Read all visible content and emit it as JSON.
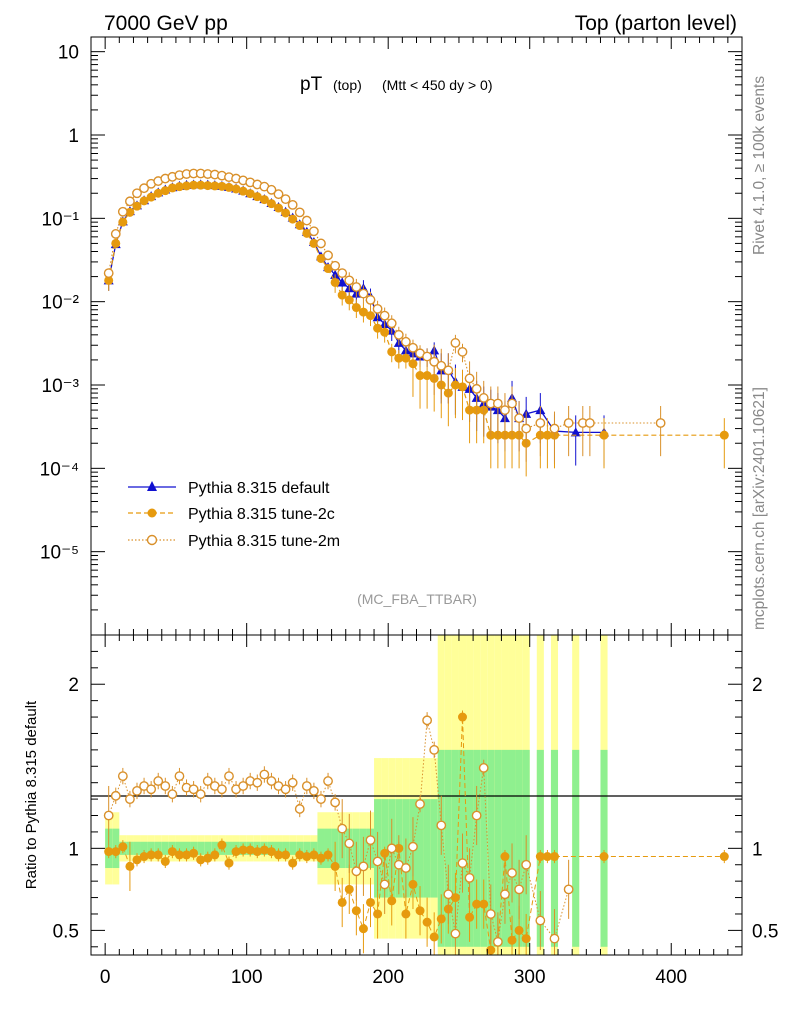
{
  "header": {
    "left": "7000 GeV pp",
    "right": "Top (parton level)"
  },
  "side_labels": {
    "top": "Rivet 4.1.0, ≥ 100k events",
    "bottom": "mcplots.cern.ch [arXiv:2401.10621]"
  },
  "colors": {
    "default": "#1010d0",
    "tune2c": "#e69a0e",
    "tune2m": "#d9902a",
    "band_green": "#8ff08f",
    "band_yellow": "#ffff99"
  },
  "chart_data": {
    "type": "line",
    "title": "pT",
    "title_sub1": "(top)",
    "title_sub2": "(Mtt < 450 dy > 0)",
    "watermark": "(MC_FBA_TTBAR)",
    "xlim": [
      -10,
      450
    ],
    "ylim": [
      1e-06,
      15
    ],
    "x_ticks": [
      "0",
      "100",
      "200",
      "300",
      "400"
    ],
    "y_ticks": [
      "10",
      "1",
      "10⁻¹",
      "10⁻²",
      "10⁻³",
      "10⁻⁴",
      "10⁻⁵"
    ],
    "legend": [
      "Pythia 8.315 default",
      "Pythia 8.315 tune-2c",
      "Pythia 8.315 tune-2m"
    ],
    "series": [
      {
        "name": "Pythia 8.315 default",
        "x": [
          2.5,
          7.5,
          12.5,
          17.5,
          22.5,
          27.5,
          32.5,
          37.5,
          42.5,
          47.5,
          52.5,
          57.5,
          62.5,
          67.5,
          72.5,
          77.5,
          82.5,
          87.5,
          92.5,
          97.5,
          102.5,
          107.5,
          112.5,
          117.5,
          122.5,
          127.5,
          132.5,
          137.5,
          142.5,
          147.5,
          152.5,
          157.5,
          162.5,
          167.5,
          172.5,
          177.5,
          182.5,
          187.5,
          192.5,
          197.5,
          202.5,
          207.5,
          212.5,
          217.5,
          222.5,
          227.5,
          232.5,
          237.5,
          242.5,
          247.5,
          252.5,
          257.5,
          262.5,
          267.5,
          272.5,
          277.5,
          282.5,
          287.5,
          292.5,
          297.5,
          307.5,
          317.5,
          332.5,
          352.5
        ],
        "values": [
          0.018,
          0.049,
          0.092,
          0.122,
          0.143,
          0.165,
          0.185,
          0.205,
          0.222,
          0.236,
          0.245,
          0.252,
          0.255,
          0.256,
          0.254,
          0.25,
          0.245,
          0.238,
          0.228,
          0.215,
          0.2,
          0.185,
          0.17,
          0.153,
          0.137,
          0.12,
          0.102,
          0.085,
          0.069,
          0.052,
          0.035,
          0.026,
          0.021,
          0.017,
          0.0145,
          0.0125,
          0.0145,
          0.0115,
          0.0065,
          0.0054,
          0.0045,
          0.0032,
          0.0026,
          0.0024,
          0.0022,
          0.0022,
          0.0026,
          0.0015,
          0.0015,
          0.0011,
          0.00095,
          0.0009,
          0.0007,
          0.0006,
          0.00055,
          0.0005,
          0.0004,
          0.0007,
          0.0004,
          0.00045,
          0.0005,
          0.00028,
          0.00027,
          0.00027
        ]
      },
      {
        "name": "Pythia 8.315 tune-2c",
        "x": [
          2.5,
          7.5,
          12.5,
          17.5,
          22.5,
          27.5,
          32.5,
          37.5,
          42.5,
          47.5,
          52.5,
          57.5,
          62.5,
          67.5,
          72.5,
          77.5,
          82.5,
          87.5,
          92.5,
          97.5,
          102.5,
          107.5,
          112.5,
          117.5,
          122.5,
          127.5,
          132.5,
          137.5,
          142.5,
          147.5,
          152.5,
          157.5,
          162.5,
          167.5,
          172.5,
          177.5,
          182.5,
          187.5,
          192.5,
          197.5,
          202.5,
          207.5,
          212.5,
          217.5,
          222.5,
          227.5,
          232.5,
          237.5,
          242.5,
          247.5,
          252.5,
          257.5,
          262.5,
          267.5,
          272.5,
          277.5,
          282.5,
          287.5,
          292.5,
          297.5,
          307.5,
          312.5,
          317.5,
          352.5,
          437.5
        ],
        "values": [
          0.018,
          0.05,
          0.09,
          0.118,
          0.14,
          0.162,
          0.18,
          0.2,
          0.215,
          0.232,
          0.24,
          0.245,
          0.25,
          0.25,
          0.247,
          0.245,
          0.242,
          0.235,
          0.225,
          0.212,
          0.198,
          0.182,
          0.168,
          0.15,
          0.133,
          0.116,
          0.098,
          0.082,
          0.066,
          0.05,
          0.033,
          0.025,
          0.017,
          0.012,
          0.0105,
          0.0085,
          0.0075,
          0.0068,
          0.0048,
          0.0043,
          0.0025,
          0.0021,
          0.0021,
          0.0018,
          0.0013,
          0.0013,
          0.0012,
          0.001,
          0.0008,
          0.001,
          0.00095,
          0.0005,
          0.0005,
          0.0005,
          0.00025,
          0.00025,
          0.00025,
          0.00025,
          0.00025,
          0.0002,
          0.00025,
          0.00025,
          0.00025,
          0.00025,
          0.00025
        ]
      },
      {
        "name": "Pythia 8.315 tune-2m",
        "x": [
          2.5,
          7.5,
          12.5,
          17.5,
          22.5,
          27.5,
          32.5,
          37.5,
          42.5,
          47.5,
          52.5,
          57.5,
          62.5,
          67.5,
          72.5,
          77.5,
          82.5,
          87.5,
          92.5,
          97.5,
          102.5,
          107.5,
          112.5,
          117.5,
          122.5,
          127.5,
          132.5,
          137.5,
          142.5,
          147.5,
          152.5,
          157.5,
          162.5,
          167.5,
          172.5,
          177.5,
          182.5,
          187.5,
          192.5,
          197.5,
          202.5,
          207.5,
          212.5,
          217.5,
          222.5,
          227.5,
          232.5,
          237.5,
          242.5,
          247.5,
          252.5,
          257.5,
          262.5,
          267.5,
          272.5,
          277.5,
          282.5,
          287.5,
          292.5,
          297.5,
          307.5,
          317.5,
          327.5,
          337.5,
          342.5,
          392.5
        ],
        "values": [
          0.022,
          0.065,
          0.12,
          0.16,
          0.2,
          0.23,
          0.26,
          0.28,
          0.3,
          0.315,
          0.33,
          0.34,
          0.345,
          0.345,
          0.34,
          0.335,
          0.325,
          0.312,
          0.3,
          0.285,
          0.27,
          0.255,
          0.24,
          0.22,
          0.195,
          0.17,
          0.145,
          0.118,
          0.094,
          0.07,
          0.05,
          0.036,
          0.027,
          0.022,
          0.018,
          0.015,
          0.0125,
          0.0105,
          0.0082,
          0.0068,
          0.0055,
          0.004,
          0.0033,
          0.0028,
          0.0024,
          0.0022,
          0.0019,
          0.0017,
          0.0015,
          0.0032,
          0.0025,
          0.0012,
          0.0009,
          0.0007,
          0.0006,
          0.0006,
          0.0005,
          0.0006,
          0.0004,
          0.0003,
          0.00035,
          0.0003,
          0.00035,
          0.00035,
          0.00035,
          0.00035
        ]
      }
    ],
    "ratio": {
      "ylabel": "Ratio to Pythia 8.315 default",
      "ylim": [
        0.35,
        2.3
      ],
      "y_ticks": [
        "2",
        "1",
        "0.5"
      ],
      "tune2c": [
        0.98,
        0.98,
        1.01,
        0.89,
        0.93,
        0.95,
        0.96,
        0.96,
        0.92,
        0.98,
        0.96,
        0.96,
        0.97,
        0.93,
        0.94,
        0.96,
        1.02,
        0.91,
        0.98,
        0.99,
        0.99,
        0.98,
        0.99,
        0.98,
        0.96,
        0.96,
        0.91,
        0.96,
        0.95,
        0.96,
        0.94,
        0.96,
        0.89,
        0.67,
        0.75,
        0.62,
        0.51,
        0.67,
        0.6,
        0.97,
        0.68,
        1.0,
        0.6,
        0.78,
        0.62,
        0.55,
        0.46,
        0.57,
        0.63,
        0.7,
        1.8,
        0.58,
        0.66,
        0.66,
        0.38,
        0.43,
        0.95,
        0.44,
        0.5,
        0.45,
        0.95,
        0.95,
        0.95,
        0.95,
        0.95
      ],
      "tune2m": [
        1.2,
        1.32,
        1.44,
        1.3,
        1.35,
        1.38,
        1.36,
        1.41,
        1.38,
        1.33,
        1.44,
        1.37,
        1.36,
        1.33,
        1.41,
        1.38,
        1.36,
        1.44,
        1.36,
        1.38,
        1.41,
        1.4,
        1.45,
        1.41,
        1.38,
        1.36,
        1.4,
        1.24,
        1.38,
        1.35,
        1.3,
        1.41,
        1.28,
        1.12,
        1.03,
        0.86,
        0.89,
        1.05,
        0.92,
        0.78,
        1.0,
        0.9,
        0.88,
        1.01,
        1.27,
        1.78,
        1.6,
        1.14,
        0.72,
        0.48,
        0.91,
        0.82,
        1.2,
        1.49,
        0.6,
        0.43,
        0.72,
        0.85,
        0.75,
        0.9,
        0.56,
        0.45,
        0.75
      ]
    }
  }
}
